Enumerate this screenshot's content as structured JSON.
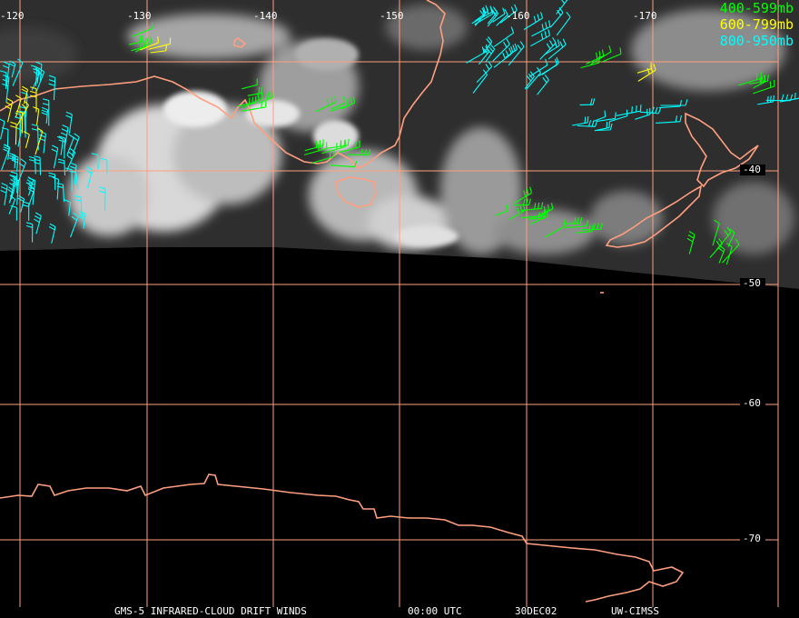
{
  "map": {
    "lon_labels": [
      "-120",
      "-130",
      "-140",
      "-150",
      "-160",
      "-170"
    ],
    "lat_labels": [
      "-40",
      "-50",
      "-60",
      "-70"
    ],
    "grid_color": "#ff9f7f",
    "coast_color": "#ff9f7f"
  },
  "legend": {
    "items": [
      {
        "label": "400-599mb",
        "color": "#00ff00"
      },
      {
        "label": "600-799mb",
        "color": "#ffff00"
      },
      {
        "label": "800-950mb",
        "color": "#00ffff"
      }
    ]
  },
  "caption": {
    "product": "GMS-5 INFRARED-CLOUD DRIFT WINDS",
    "time": "00:00 UTC",
    "date": "30DEC02",
    "source": "UW-CIMSS"
  }
}
